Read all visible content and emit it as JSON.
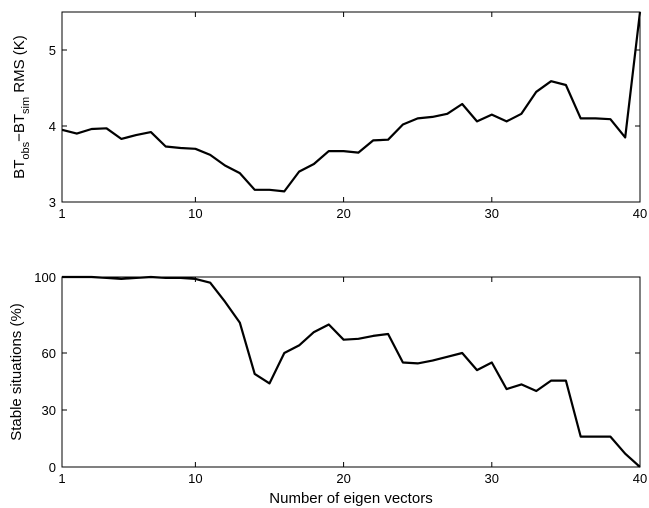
{
  "chart_data": [
    {
      "type": "line",
      "title": "",
      "xlabel": "",
      "ylabel": {
        "parts": [
          "BT",
          "obs",
          "−BT",
          "sim",
          " RMS (K)"
        ]
      },
      "xlim": [
        1,
        40
      ],
      "ylim": [
        3,
        5.5
      ],
      "xticks": [
        1,
        10,
        20,
        30,
        40
      ],
      "yticks": [
        3,
        4,
        5
      ],
      "grid": false,
      "line_color": "#000000",
      "x": [
        1,
        2,
        3,
        4,
        5,
        6,
        7,
        8,
        9,
        10,
        11,
        12,
        13,
        14,
        15,
        16,
        17,
        18,
        19,
        20,
        21,
        22,
        23,
        24,
        25,
        26,
        27,
        28,
        29,
        30,
        31,
        32,
        33,
        34,
        35,
        36,
        37,
        38,
        39,
        40
      ],
      "y": [
        3.95,
        3.9,
        3.96,
        3.97,
        3.83,
        3.88,
        3.92,
        3.73,
        3.71,
        3.7,
        3.62,
        3.48,
        3.38,
        3.16,
        3.16,
        3.14,
        3.4,
        3.5,
        3.67,
        3.67,
        3.65,
        3.81,
        3.82,
        4.02,
        4.1,
        4.12,
        4.16,
        4.29,
        4.06,
        4.15,
        4.06,
        4.16,
        4.45,
        4.59,
        4.54,
        4.1,
        4.1,
        4.09,
        3.85,
        5.5
      ]
    },
    {
      "type": "line",
      "title": "",
      "xlabel": "Number of eigen vectors",
      "ylabel": "Stable situations (%)",
      "xlim": [
        1,
        40
      ],
      "ylim": [
        0,
        100
      ],
      "xticks": [
        1,
        10,
        20,
        30,
        40
      ],
      "yticks": [
        0,
        30,
        60,
        100
      ],
      "grid": false,
      "line_color": "#000000",
      "x": [
        1,
        2,
        3,
        4,
        5,
        6,
        7,
        8,
        9,
        10,
        11,
        12,
        13,
        14,
        15,
        16,
        17,
        18,
        19,
        20,
        21,
        22,
        23,
        24,
        25,
        26,
        27,
        28,
        29,
        30,
        31,
        32,
        33,
        34,
        35,
        36,
        37,
        38,
        39,
        40
      ],
      "y": [
        100,
        100,
        100,
        99.5,
        99,
        99.5,
        100,
        99.5,
        99.5,
        99,
        97,
        87,
        76,
        49,
        44,
        60,
        64,
        71,
        75,
        67,
        67.5,
        69,
        70,
        55,
        54.5,
        56,
        58,
        60,
        51,
        55,
        41,
        43.5,
        40,
        45.5,
        45.5,
        16,
        16,
        16,
        7,
        0
      ]
    }
  ]
}
